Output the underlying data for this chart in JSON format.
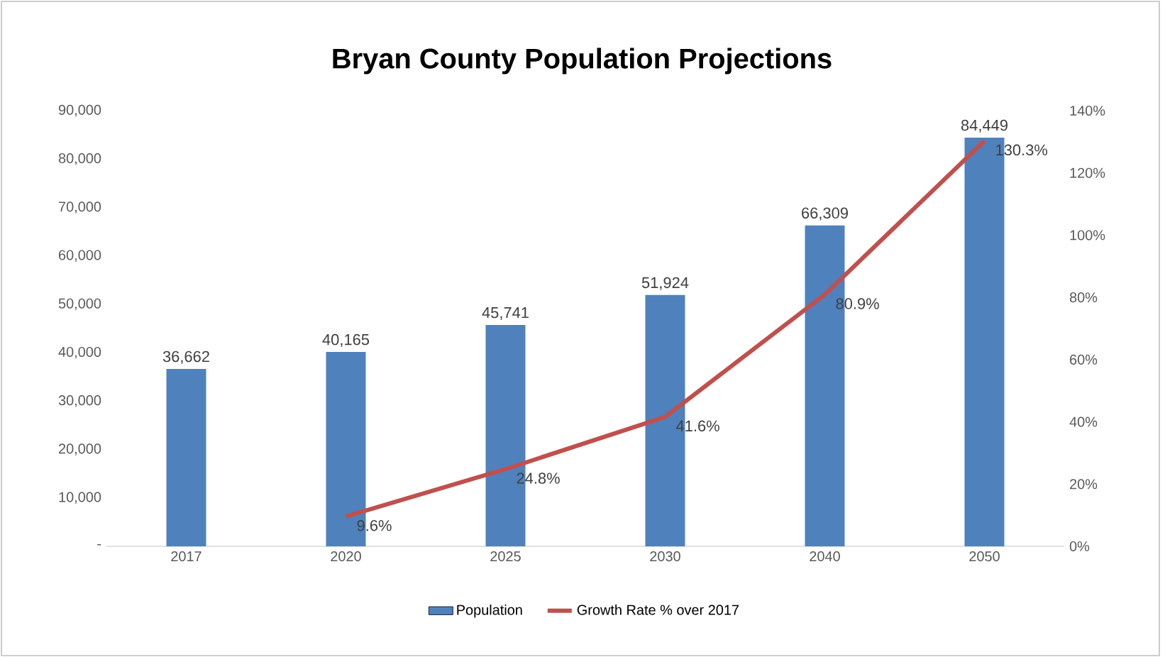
{
  "chart_data": {
    "type": "bar",
    "title": "Bryan County Population Projections",
    "categories": [
      "2017",
      "2020",
      "2025",
      "2030",
      "2040",
      "2050"
    ],
    "series": [
      {
        "name": "Population",
        "color": "#4f81bd",
        "values": [
          36662,
          40165,
          45741,
          51924,
          66309,
          84449
        ],
        "value_labels": [
          "36,662",
          "40,165",
          "45,741",
          "51,924",
          "66,309",
          "84,449"
        ]
      },
      {
        "name": "Growth Rate % over 2017",
        "type": "line",
        "axis": "y2",
        "color": "#c0504d",
        "values": [
          null,
          9.6,
          24.8,
          41.6,
          80.9,
          130.3
        ],
        "value_labels": [
          null,
          "9.6%",
          "24.8%",
          "41.6%",
          "80.9%",
          "130.3%"
        ]
      }
    ],
    "ylim": [
      0,
      90000
    ],
    "yticks": [
      {
        "value": 0,
        "label": "-"
      },
      {
        "value": 10000,
        "label": "10,000"
      },
      {
        "value": 20000,
        "label": "20,000"
      },
      {
        "value": 30000,
        "label": "30,000"
      },
      {
        "value": 40000,
        "label": "40,000"
      },
      {
        "value": 50000,
        "label": "50,000"
      },
      {
        "value": 60000,
        "label": "60,000"
      },
      {
        "value": 70000,
        "label": "70,000"
      },
      {
        "value": 80000,
        "label": "80,000"
      },
      {
        "value": 90000,
        "label": "90,000"
      }
    ],
    "y2lim": [
      0,
      140
    ],
    "y2ticks": [
      {
        "value": 0,
        "label": "0%"
      },
      {
        "value": 20,
        "label": "20%"
      },
      {
        "value": 40,
        "label": "40%"
      },
      {
        "value": 60,
        "label": "60%"
      },
      {
        "value": 80,
        "label": "80%"
      },
      {
        "value": 100,
        "label": "100%"
      },
      {
        "value": 120,
        "label": "120%"
      },
      {
        "value": 140,
        "label": "140%"
      }
    ],
    "legend": "bottom"
  }
}
